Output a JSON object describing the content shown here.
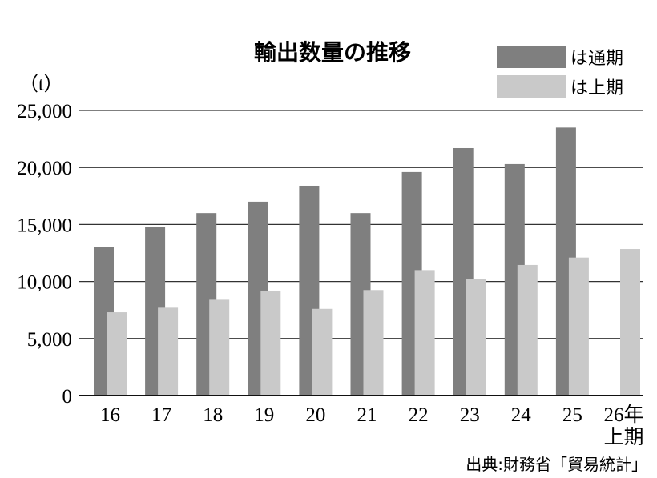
{
  "chart_data": {
    "type": "bar",
    "title": "輸出数量の推移",
    "unit": "（t）",
    "categories": [
      "16",
      "17",
      "18",
      "19",
      "20",
      "21",
      "22",
      "23",
      "24",
      "25",
      "26年"
    ],
    "category_sublabels": [
      "",
      "",
      "",
      "",
      "",
      "",
      "",
      "",
      "",
      "",
      "上期"
    ],
    "series": [
      {
        "name": "は通期",
        "color": "#7f7f7f",
        "values": [
          13000,
          14750,
          16000,
          17000,
          18400,
          16000,
          19600,
          21700,
          20300,
          23500,
          null
        ]
      },
      {
        "name": "は上期",
        "color": "#c9c9c9",
        "values": [
          7300,
          7700,
          8400,
          9200,
          7600,
          9250,
          11000,
          10200,
          11450,
          12100,
          12850
        ]
      }
    ],
    "ylim": [
      0,
      25000
    ],
    "yticks": [
      0,
      5000,
      10000,
      15000,
      20000,
      25000
    ],
    "ytick_labels": [
      "0",
      "5,000",
      "10,000",
      "15,000",
      "20,000",
      "25,000"
    ],
    "grid": true,
    "legend": "top-right",
    "source": "出典:財務省「貿易統計」"
  }
}
